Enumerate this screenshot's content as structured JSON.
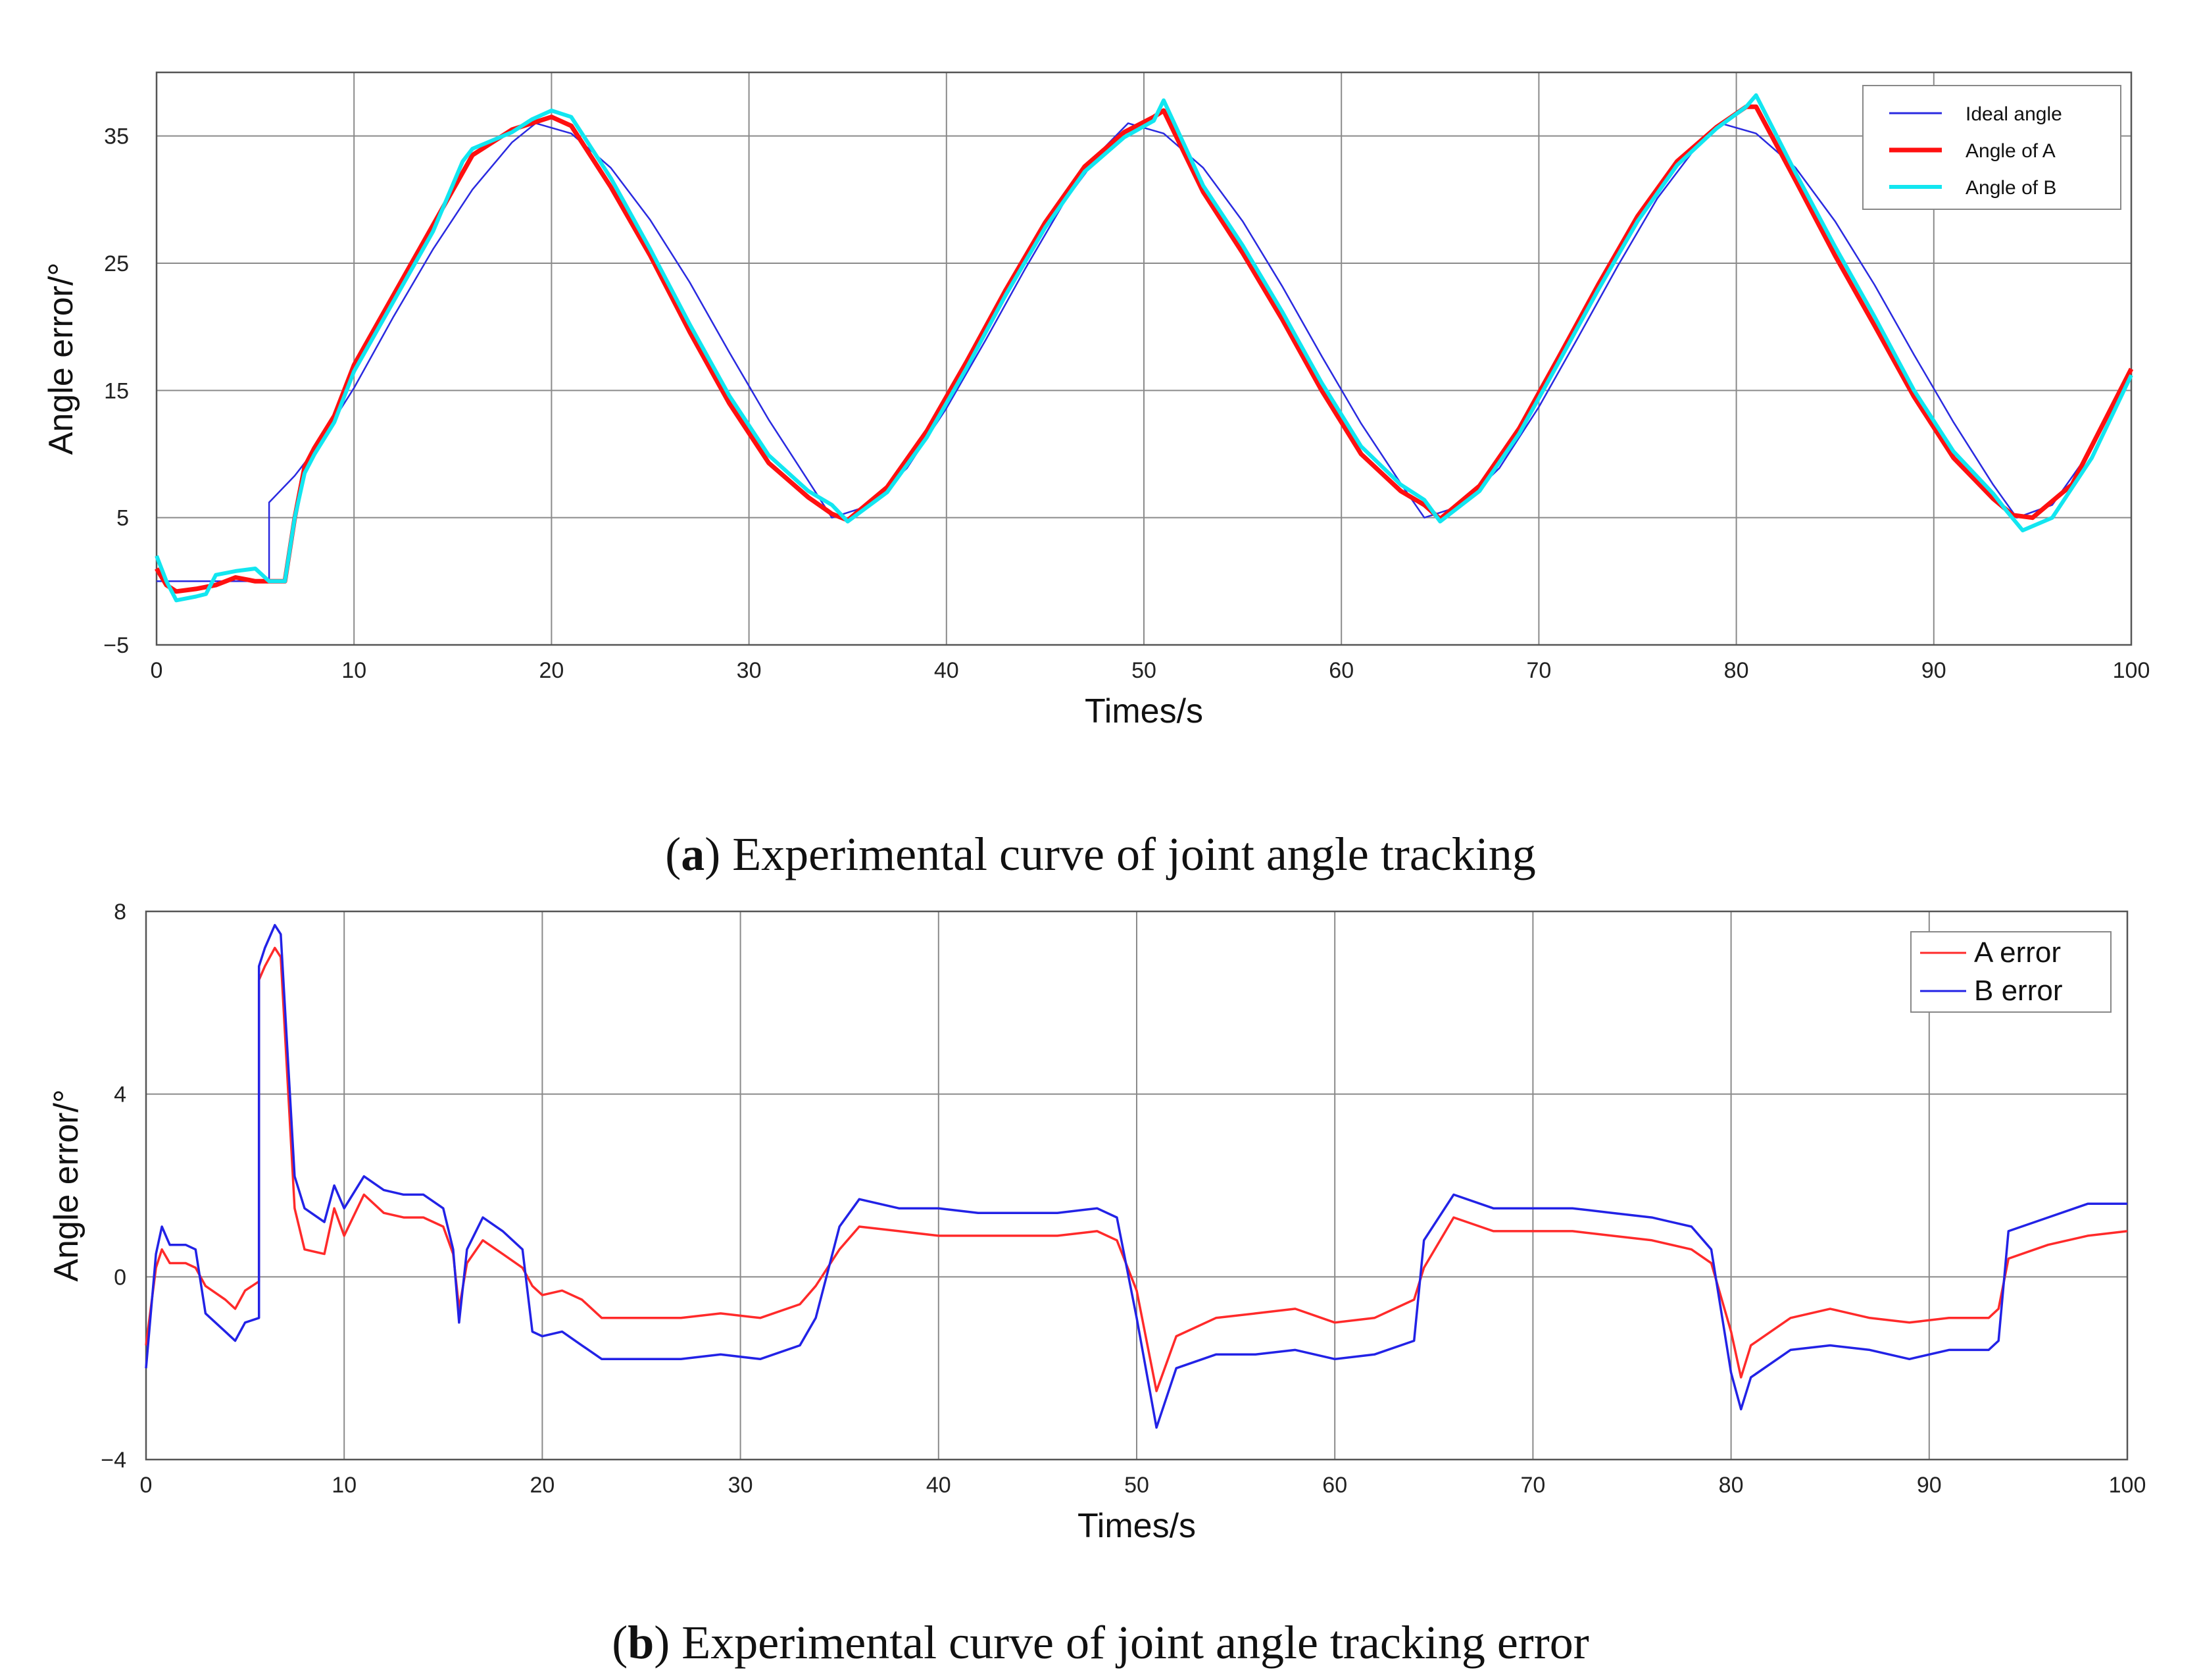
{
  "chart_data": [
    {
      "type": "line",
      "xlabel": "Times/s",
      "ylabel": "Angle error/°",
      "xlim": [
        0,
        100
      ],
      "ylim": [
        -5,
        40
      ],
      "xticks": [
        0,
        10,
        20,
        30,
        40,
        50,
        60,
        70,
        80,
        90,
        100
      ],
      "yticks": [
        -5,
        5,
        15,
        25,
        35
      ],
      "ytick_labels": [
        "−5",
        "5",
        "15",
        "25",
        "35"
      ],
      "grid": true,
      "legend_position": "top-right",
      "caption_label": "a",
      "caption_text": "Experimental curve of joint angle tracking",
      "series": [
        {
          "name": "Ideal angle",
          "color": "#2a2ae0",
          "x": [
            0,
            5.7,
            5.7,
            7,
            8,
            10,
            12,
            14,
            16,
            18,
            19.2,
            21,
            23,
            25,
            27,
            29,
            31,
            33,
            34.2,
            36,
            38,
            40,
            42,
            44,
            46,
            48,
            49.2,
            51,
            53,
            55,
            57,
            59,
            61,
            63,
            64.2,
            66,
            68,
            70,
            72,
            74,
            76,
            78,
            79.2,
            81,
            83,
            85,
            87,
            89,
            91,
            93,
            94.2,
            96,
            98,
            100
          ],
          "values": [
            0,
            0,
            6.2,
            8.3,
            10.3,
            15.2,
            20.8,
            26.1,
            30.8,
            34.5,
            36.0,
            35.2,
            32.5,
            28.4,
            23.5,
            18.0,
            12.7,
            7.9,
            5.0,
            5.9,
            8.9,
            13.6,
            19.0,
            24.6,
            29.9,
            34.1,
            36.0,
            35.2,
            32.5,
            28.3,
            23.2,
            17.7,
            12.4,
            7.7,
            5.0,
            5.9,
            8.9,
            13.7,
            19.2,
            24.8,
            30.1,
            34.2,
            36.0,
            35.2,
            32.5,
            28.3,
            23.3,
            17.8,
            12.5,
            7.6,
            5.0,
            6.0,
            10.4,
            16.7
          ]
        },
        {
          "name": "Angle of A",
          "color": "#ff1010",
          "x": [
            0,
            0.5,
            1,
            2,
            3,
            4,
            5,
            5.7,
            6.5,
            7,
            7.5,
            8,
            9,
            10,
            12,
            14,
            16,
            18,
            19,
            20,
            21,
            23,
            25,
            27,
            29,
            31,
            33,
            34.2,
            35,
            37,
            39,
            41,
            43,
            45,
            47,
            49,
            50.5,
            51,
            53,
            55,
            57,
            59,
            61,
            63,
            64.2,
            65,
            67,
            69,
            71,
            73,
            75,
            77,
            79,
            80.5,
            81,
            83,
            85,
            87,
            89,
            91,
            93,
            94,
            95,
            97,
            100
          ],
          "values": [
            1.0,
            -0.3,
            -0.8,
            -0.6,
            -0.3,
            0.3,
            0.0,
            0.0,
            0.0,
            5.0,
            9.0,
            10.5,
            13.0,
            17.0,
            22.5,
            28.0,
            33.5,
            35.5,
            36.0,
            36.5,
            35.8,
            31.0,
            25.6,
            19.6,
            14.0,
            9.3,
            6.6,
            5.3,
            4.8,
            7.4,
            11.8,
            17.2,
            22.9,
            28.2,
            32.6,
            35.3,
            36.5,
            37.0,
            30.6,
            25.8,
            20.6,
            15.0,
            10.0,
            7.1,
            6.0,
            4.9,
            7.5,
            12.0,
            17.6,
            23.3,
            28.7,
            33.0,
            35.7,
            37.3,
            37.3,
            31.5,
            25.6,
            20.1,
            14.5,
            9.7,
            6.5,
            5.2,
            5.0,
            7.6,
            16.7
          ]
        },
        {
          "name": "Angle of B",
          "color": "#12e6f0",
          "x": [
            0,
            0.5,
            1,
            2,
            2.5,
            3,
            4,
            5,
            5.7,
            6.5,
            7,
            7.5,
            8,
            9,
            10,
            12,
            14,
            15.5,
            16,
            18,
            19,
            20,
            21,
            23,
            25,
            27,
            29,
            31,
            33,
            34.2,
            35,
            37,
            39,
            41,
            43,
            45,
            47,
            49,
            50.5,
            51,
            53,
            55,
            57,
            59,
            61,
            63,
            64.2,
            65,
            67,
            69,
            71,
            73,
            75,
            77,
            79,
            80.5,
            81,
            83,
            85,
            87,
            89,
            91,
            93,
            93.7,
            94.5,
            96,
            98,
            100
          ],
          "values": [
            2.0,
            0.0,
            -1.5,
            -1.2,
            -1.0,
            0.5,
            0.8,
            1.0,
            0.0,
            0.0,
            5.0,
            8.5,
            10.0,
            12.5,
            16.5,
            22.0,
            27.5,
            33.0,
            34.0,
            35.3,
            36.3,
            37.0,
            36.5,
            31.7,
            26.1,
            20.2,
            14.6,
            9.9,
            7.1,
            6.0,
            4.7,
            7.0,
            11.3,
            16.7,
            22.5,
            27.8,
            32.2,
            34.9,
            36.2,
            37.8,
            31.1,
            26.4,
            21.2,
            15.6,
            10.6,
            7.6,
            6.4,
            4.7,
            7.1,
            11.6,
            17.2,
            22.9,
            28.3,
            32.7,
            35.6,
            37.3,
            38.2,
            32.1,
            26.3,
            20.8,
            15.0,
            10.2,
            6.9,
            5.5,
            4.0,
            5.0,
            9.7,
            16.2
          ]
        }
      ]
    },
    {
      "type": "line",
      "xlabel": "Times/s",
      "ylabel": "Angle error/°",
      "xlim": [
        0,
        100
      ],
      "ylim": [
        -4,
        8
      ],
      "xticks": [
        0,
        10,
        20,
        30,
        40,
        50,
        60,
        70,
        80,
        90,
        100
      ],
      "yticks": [
        -4,
        0,
        4,
        8
      ],
      "ytick_labels": [
        "−4",
        "0",
        "4",
        "8"
      ],
      "grid": true,
      "legend_position": "top-right",
      "caption_label": "b",
      "caption_text": "Experimental curve of joint angle tracking error",
      "series": [
        {
          "name": "A error",
          "color": "#ff2a2a",
          "x": [
            0,
            0.5,
            0.8,
            1.2,
            2,
            2.5,
            3,
            4,
            4.5,
            5,
            5.7,
            5.7,
            6,
            6.5,
            6.8,
            7.5,
            8,
            9,
            9.5,
            10,
            11,
            12,
            13,
            14,
            15,
            15.5,
            15.8,
            16.2,
            17,
            18,
            19,
            19.5,
            20,
            21,
            22,
            23,
            25,
            27,
            29,
            31,
            33,
            33.8,
            35,
            36,
            38,
            40,
            42,
            44,
            46,
            48,
            49,
            50,
            51,
            52,
            54,
            56,
            58,
            60,
            62,
            64,
            64.5,
            66,
            68,
            70,
            72,
            74,
            76,
            78,
            79,
            80,
            80.5,
            81,
            83,
            85,
            87,
            89,
            91,
            93,
            93.5,
            94,
            96,
            98,
            100
          ],
          "values": [
            -1.5,
            0.2,
            0.6,
            0.3,
            0.3,
            0.2,
            -0.2,
            -0.5,
            -0.7,
            -0.3,
            -0.1,
            6.5,
            6.8,
            7.2,
            7.0,
            1.5,
            0.6,
            0.5,
            1.5,
            0.9,
            1.8,
            1.4,
            1.3,
            1.3,
            1.1,
            0.5,
            -0.7,
            0.3,
            0.8,
            0.5,
            0.2,
            -0.2,
            -0.4,
            -0.3,
            -0.5,
            -0.9,
            -0.9,
            -0.9,
            -0.8,
            -0.9,
            -0.6,
            -0.2,
            0.6,
            1.1,
            1.0,
            0.9,
            0.9,
            0.9,
            0.9,
            1.0,
            0.8,
            -0.3,
            -2.5,
            -1.3,
            -0.9,
            -0.8,
            -0.7,
            -1.0,
            -0.9,
            -0.5,
            0.2,
            1.3,
            1.0,
            1.0,
            1.0,
            0.9,
            0.8,
            0.6,
            0.3,
            -1.2,
            -2.2,
            -1.5,
            -0.9,
            -0.7,
            -0.9,
            -1.0,
            -0.9,
            -0.9,
            -0.7,
            0.4,
            0.7,
            0.9,
            1.0
          ]
        },
        {
          "name": "B error",
          "color": "#2222e6",
          "x": [
            0,
            0.5,
            0.8,
            1.2,
            2,
            2.5,
            3,
            4,
            4.5,
            5,
            5.7,
            5.7,
            6,
            6.5,
            6.8,
            7.5,
            8,
            9,
            9.5,
            10,
            11,
            12,
            13,
            14,
            15,
            15.5,
            15.8,
            16.2,
            17,
            18,
            19,
            19.5,
            20,
            21,
            22,
            23,
            25,
            27,
            29,
            31,
            33,
            33.8,
            35,
            36,
            38,
            40,
            42,
            44,
            46,
            48,
            49,
            50,
            51,
            52,
            54,
            56,
            58,
            60,
            62,
            64,
            64.5,
            66,
            68,
            70,
            72,
            74,
            76,
            78,
            79,
            80,
            80.5,
            81,
            83,
            85,
            87,
            89,
            91,
            93,
            93.5,
            94,
            96,
            98,
            100
          ],
          "values": [
            -2.0,
            0.5,
            1.1,
            0.7,
            0.7,
            0.6,
            -0.8,
            -1.2,
            -1.4,
            -1.0,
            -0.9,
            6.8,
            7.2,
            7.7,
            7.5,
            2.2,
            1.5,
            1.2,
            2.0,
            1.5,
            2.2,
            1.9,
            1.8,
            1.8,
            1.5,
            0.6,
            -1.0,
            0.6,
            1.3,
            1.0,
            0.6,
            -1.2,
            -1.3,
            -1.2,
            -1.5,
            -1.8,
            -1.8,
            -1.8,
            -1.7,
            -1.8,
            -1.5,
            -0.9,
            1.1,
            1.7,
            1.5,
            1.5,
            1.4,
            1.4,
            1.4,
            1.5,
            1.3,
            -0.9,
            -3.3,
            -2.0,
            -1.7,
            -1.7,
            -1.6,
            -1.8,
            -1.7,
            -1.4,
            0.8,
            1.8,
            1.5,
            1.5,
            1.5,
            1.4,
            1.3,
            1.1,
            0.6,
            -2.1,
            -2.9,
            -2.2,
            -1.6,
            -1.5,
            -1.6,
            -1.8,
            -1.6,
            -1.6,
            -1.4,
            1.0,
            1.3,
            1.6,
            1.6
          ]
        }
      ]
    }
  ]
}
